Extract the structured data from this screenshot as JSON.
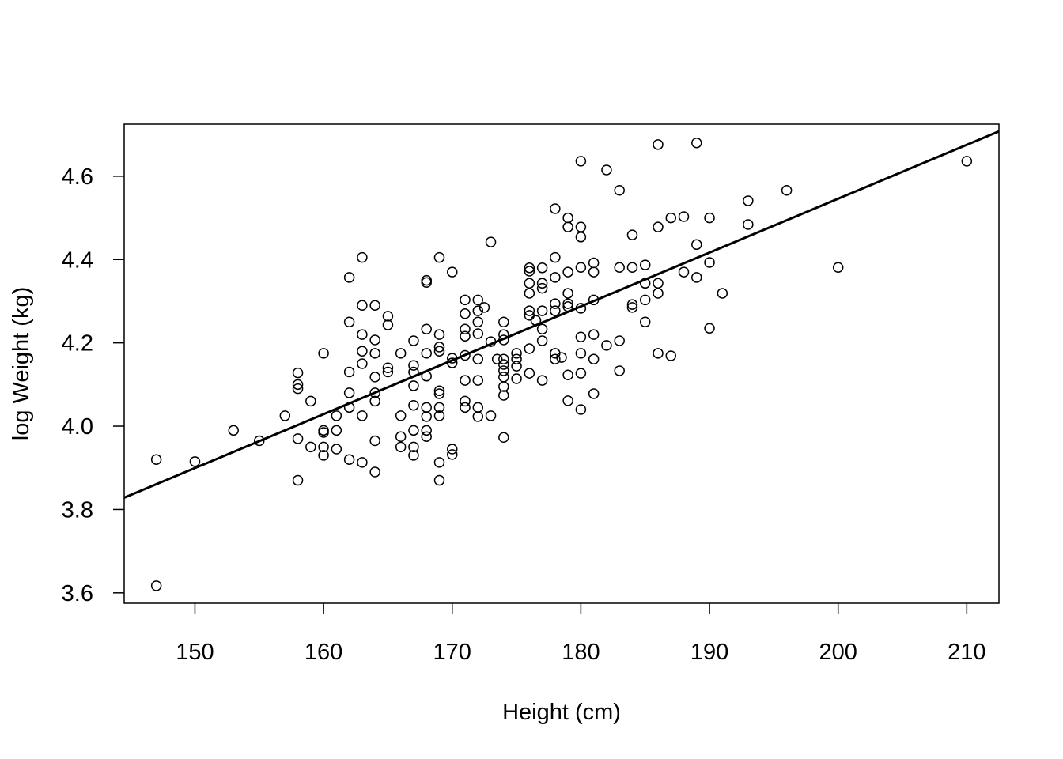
{
  "chart_data": {
    "type": "scatter",
    "title": "",
    "xlabel": "Height (cm)",
    "ylabel": "log Weight (kg)",
    "xlim": [
      144.5,
      212.5
    ],
    "ylim": [
      3.575,
      4.725
    ],
    "xticks": [
      150,
      160,
      170,
      180,
      190,
      200,
      210
    ],
    "yticks": [
      3.6,
      3.8,
      4.0,
      4.2,
      4.4,
      4.6
    ],
    "xtick_labels": [
      "150",
      "160",
      "170",
      "180",
      "190",
      "200",
      "210"
    ],
    "ytick_labels": [
      "3.6",
      "3.8",
      "4.0",
      "4.2",
      "4.4",
      "4.6"
    ],
    "grid": false,
    "regression_line": {
      "intercept": 1.96,
      "slope": 0.01293
    },
    "points": [
      [
        147,
        3.92
      ],
      [
        147,
        3.617
      ],
      [
        150,
        3.915
      ],
      [
        153,
        3.99
      ],
      [
        155,
        3.965
      ],
      [
        157,
        4.025
      ],
      [
        158,
        4.128
      ],
      [
        158,
        4.1
      ],
      [
        158,
        4.09
      ],
      [
        158,
        3.97
      ],
      [
        158,
        3.87
      ],
      [
        159,
        4.06
      ],
      [
        159,
        3.95
      ],
      [
        160,
        4.175
      ],
      [
        160,
        3.99
      ],
      [
        160,
        3.985
      ],
      [
        160,
        3.95
      ],
      [
        160,
        3.93
      ],
      [
        161,
        4.025
      ],
      [
        161,
        3.99
      ],
      [
        161,
        3.945
      ],
      [
        162,
        4.357
      ],
      [
        162,
        4.25
      ],
      [
        162,
        4.13
      ],
      [
        162,
        4.08
      ],
      [
        162,
        4.045
      ],
      [
        162,
        3.92
      ],
      [
        163,
        4.405
      ],
      [
        163,
        4.29
      ],
      [
        163,
        4.22
      ],
      [
        163,
        4.18
      ],
      [
        163,
        4.15
      ],
      [
        163,
        4.025
      ],
      [
        163,
        3.913
      ],
      [
        164,
        4.29
      ],
      [
        164,
        4.207
      ],
      [
        164,
        4.175
      ],
      [
        164,
        4.118
      ],
      [
        164,
        4.08
      ],
      [
        164,
        4.06
      ],
      [
        164,
        3.965
      ],
      [
        164,
        3.89
      ],
      [
        165,
        4.264
      ],
      [
        165,
        4.243
      ],
      [
        165,
        4.14
      ],
      [
        165,
        4.13
      ],
      [
        166,
        4.175
      ],
      [
        166,
        4.025
      ],
      [
        166,
        3.975
      ],
      [
        166,
        3.95
      ],
      [
        167,
        4.205
      ],
      [
        167,
        4.146
      ],
      [
        167,
        4.13
      ],
      [
        167,
        4.097
      ],
      [
        167,
        4.05
      ],
      [
        167,
        3.99
      ],
      [
        167,
        3.95
      ],
      [
        167,
        3.93
      ],
      [
        168,
        4.35
      ],
      [
        168,
        4.345
      ],
      [
        168,
        4.233
      ],
      [
        168,
        4.175
      ],
      [
        168,
        4.12
      ],
      [
        168,
        4.045
      ],
      [
        168,
        4.023
      ],
      [
        168,
        3.99
      ],
      [
        168,
        3.975
      ],
      [
        169,
        4.405
      ],
      [
        169,
        4.22
      ],
      [
        169,
        4.19
      ],
      [
        169,
        4.18
      ],
      [
        169,
        4.085
      ],
      [
        169,
        4.078
      ],
      [
        169,
        4.045
      ],
      [
        169,
        4.025
      ],
      [
        169,
        3.913
      ],
      [
        169,
        3.87
      ],
      [
        170,
        4.37
      ],
      [
        170,
        4.163
      ],
      [
        170,
        4.152
      ],
      [
        170,
        3.945
      ],
      [
        170,
        3.932
      ],
      [
        171,
        4.303
      ],
      [
        171,
        4.27
      ],
      [
        171,
        4.233
      ],
      [
        171,
        4.216
      ],
      [
        171,
        4.17
      ],
      [
        171,
        4.11
      ],
      [
        171,
        4.06
      ],
      [
        171,
        4.045
      ],
      [
        172,
        4.303
      ],
      [
        172,
        4.277
      ],
      [
        172,
        4.25
      ],
      [
        172,
        4.222
      ],
      [
        172,
        4.161
      ],
      [
        172,
        4.11
      ],
      [
        172,
        4.045
      ],
      [
        172,
        4.023
      ],
      [
        172.5,
        4.285
      ],
      [
        173,
        4.442
      ],
      [
        173,
        4.203
      ],
      [
        173,
        4.025
      ],
      [
        173.5,
        4.161
      ],
      [
        174,
        4.25
      ],
      [
        174,
        4.22
      ],
      [
        174,
        4.207
      ],
      [
        174,
        4.161
      ],
      [
        174,
        4.148
      ],
      [
        174,
        4.133
      ],
      [
        174,
        4.118
      ],
      [
        174,
        4.095
      ],
      [
        174,
        4.074
      ],
      [
        174,
        3.973
      ],
      [
        175,
        4.175
      ],
      [
        175,
        4.161
      ],
      [
        175,
        4.144
      ],
      [
        175,
        4.114
      ],
      [
        176,
        4.38
      ],
      [
        176,
        4.372
      ],
      [
        176,
        4.343
      ],
      [
        176,
        4.319
      ],
      [
        176,
        4.277
      ],
      [
        176,
        4.266
      ],
      [
        176,
        4.186
      ],
      [
        176,
        4.127
      ],
      [
        176.5,
        4.254
      ],
      [
        177,
        4.38
      ],
      [
        177,
        4.343
      ],
      [
        177,
        4.331
      ],
      [
        177,
        4.277
      ],
      [
        177,
        4.233
      ],
      [
        177,
        4.205
      ],
      [
        177,
        4.11
      ],
      [
        178,
        4.522
      ],
      [
        178,
        4.405
      ],
      [
        178,
        4.357
      ],
      [
        178,
        4.294
      ],
      [
        178,
        4.277
      ],
      [
        178,
        4.175
      ],
      [
        178,
        4.161
      ],
      [
        178.5,
        4.165
      ],
      [
        179,
        4.5
      ],
      [
        179,
        4.478
      ],
      [
        179,
        4.37
      ],
      [
        179,
        4.319
      ],
      [
        179,
        4.294
      ],
      [
        179,
        4.287
      ],
      [
        179,
        4.123
      ],
      [
        179,
        4.061
      ],
      [
        180,
        4.636
      ],
      [
        180,
        4.478
      ],
      [
        180,
        4.454
      ],
      [
        180,
        4.381
      ],
      [
        180,
        4.283
      ],
      [
        180,
        4.214
      ],
      [
        180,
        4.175
      ],
      [
        180,
        4.127
      ],
      [
        180,
        4.04
      ],
      [
        181,
        4.392
      ],
      [
        181,
        4.37
      ],
      [
        181,
        4.303
      ],
      [
        181,
        4.22
      ],
      [
        181,
        4.161
      ],
      [
        181,
        4.078
      ],
      [
        182,
        4.194
      ],
      [
        182,
        4.615
      ],
      [
        183,
        4.566
      ],
      [
        183,
        4.381
      ],
      [
        183,
        4.205
      ],
      [
        183,
        4.133
      ],
      [
        184,
        4.459
      ],
      [
        184,
        4.381
      ],
      [
        184,
        4.292
      ],
      [
        184,
        4.285
      ],
      [
        185,
        4.387
      ],
      [
        185,
        4.343
      ],
      [
        185,
        4.303
      ],
      [
        185,
        4.25
      ],
      [
        186,
        4.676
      ],
      [
        186,
        4.478
      ],
      [
        186,
        4.343
      ],
      [
        186,
        4.319
      ],
      [
        186,
        4.175
      ],
      [
        187,
        4.5
      ],
      [
        187,
        4.169
      ],
      [
        188,
        4.503
      ],
      [
        188,
        4.37
      ],
      [
        189,
        4.68
      ],
      [
        189,
        4.436
      ],
      [
        189,
        4.357
      ],
      [
        190,
        4.5
      ],
      [
        190,
        4.393
      ],
      [
        190,
        4.235
      ],
      [
        191,
        4.319
      ],
      [
        193,
        4.541
      ],
      [
        193,
        4.484
      ],
      [
        196,
        4.566
      ],
      [
        200,
        4.381
      ],
      [
        210,
        4.636
      ]
    ]
  }
}
